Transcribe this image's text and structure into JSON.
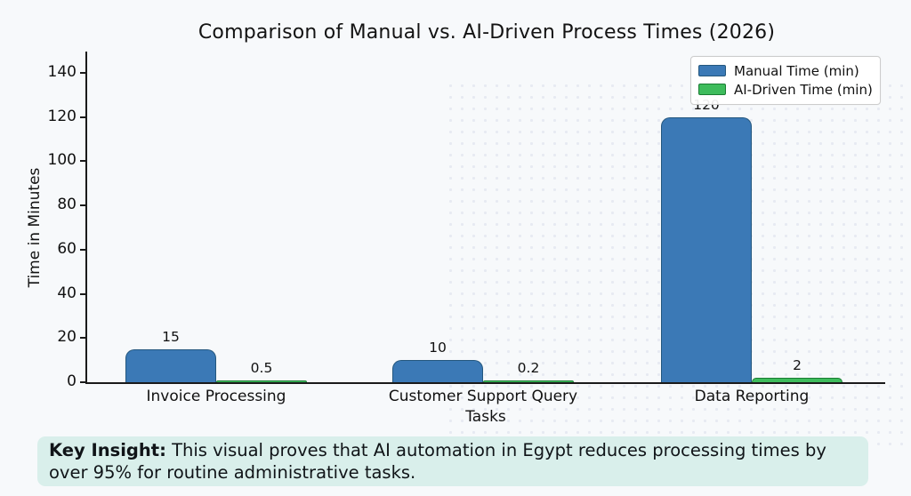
{
  "chart_data": {
    "type": "bar",
    "title": "Comparison of Manual vs. AI-Driven Process Times (2026)",
    "categories": [
      "Invoice Processing",
      "Customer Support Query",
      "Data Reporting"
    ],
    "series": [
      {
        "name": "Manual Time (min)",
        "color": "#3b79b6",
        "edge_color": "#24577e",
        "values": [
          15,
          10,
          120
        ],
        "value_labels": [
          "15",
          "10",
          "120"
        ]
      },
      {
        "name": "AI-Driven Time (min)",
        "color": "#3ebc5c",
        "edge_color": "#1a7c33",
        "values": [
          0.5,
          0.2,
          2
        ],
        "value_labels": [
          "0.5",
          "0.2",
          "2"
        ]
      }
    ],
    "xlabel": "Tasks",
    "ylabel": "Time in Minutes",
    "ylim": [
      0,
      140
    ],
    "ytick_step": 20,
    "yticks": [
      "0",
      "20",
      "40",
      "60",
      "80",
      "100",
      "120",
      "140"
    ],
    "legend_position": "upper right",
    "grid": false
  },
  "insight": {
    "label": "Key Insight:",
    "text": " This visual proves that AI automation in Egypt reduces processing times by over 95% for routine administrative tasks."
  }
}
